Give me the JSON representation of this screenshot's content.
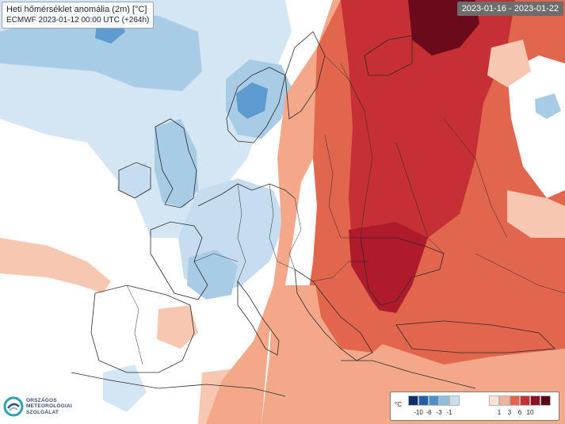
{
  "title": {
    "line1": "Heti hőmérséklet anomália (2m) [°C]",
    "line2": "ECMWF 2023-01-12 00:00 UTC (+264h)"
  },
  "date_range": "2023-01-16 - 2023-01-22",
  "legend": {
    "unit": "°C",
    "negative_colors": [
      "#0d2f6e",
      "#1f5fa6",
      "#4a8ecb",
      "#8fbde0",
      "#c8dff0"
    ],
    "positive_colors": [
      "#fde3d4",
      "#f5b29a",
      "#e2654d",
      "#c62f33",
      "#8a1224",
      "#5c0217"
    ],
    "negative_ticks": [
      "-10",
      "-6",
      "-3",
      "-1"
    ],
    "positive_ticks": [
      "1",
      "3",
      "6",
      "10"
    ]
  },
  "logo": {
    "line1": "ORSZÁGOS",
    "line2": "METEOROLÓGIAI",
    "line3": "SZOLGÁLAT"
  },
  "colors": {
    "background": "#ffffff",
    "light_blue": "#d4e6f4",
    "mid_blue": "#a7cbe6",
    "deep_blue": "#5d9bd0",
    "light_orange": "#f8c7b1",
    "orange": "#e8805f",
    "red_orange": "#d4553f",
    "red": "#b91f2e",
    "dark_red": "#6b0a1b",
    "border_line": "#2b2b2b"
  }
}
